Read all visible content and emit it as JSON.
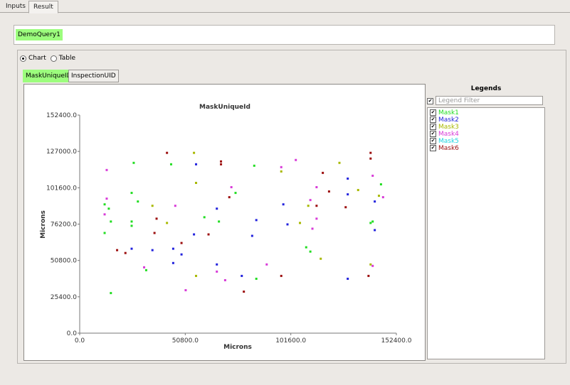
{
  "tabs": {
    "inputs": "Inputs",
    "result": "Result"
  },
  "query": {
    "chip": "DemoQuery1"
  },
  "view_mode": {
    "chart": "Chart",
    "table": "Table",
    "selected": "chart"
  },
  "subtabs": {
    "active": "MaskUniqueID",
    "other": "InspectionUID"
  },
  "legends": {
    "title": "Legends",
    "filter_placeholder": "Legend Filter",
    "items": [
      {
        "label": "Mask1",
        "color": "#22dd22"
      },
      {
        "label": "Mask2",
        "color": "#2222dd"
      },
      {
        "label": "Mask3",
        "color": "#a8b800"
      },
      {
        "label": "Mask4",
        "color": "#d83ad8"
      },
      {
        "label": "Mask5",
        "color": "#1dd5e0"
      },
      {
        "label": "Mask6",
        "color": "#9c0e0e"
      }
    ]
  },
  "chart_data": {
    "type": "scatter",
    "title": "MaskUniqueId",
    "xlabel": "Microns",
    "ylabel": "Microns",
    "xlim": [
      0,
      152400
    ],
    "ylim": [
      0,
      152400
    ],
    "xticks": [
      "0.0",
      "50800.0",
      "101600.0",
      "152400.0"
    ],
    "yticks": [
      "0.0",
      "25400.0",
      "50800.0",
      "76200.0",
      "101600.0",
      "127000.0",
      "152400.0"
    ],
    "grid": false,
    "series": [
      {
        "name": "Mask1",
        "color": "#22dd22",
        "points": [
          [
            12000,
            90000
          ],
          [
            12000,
            70000
          ],
          [
            14000,
            87000
          ],
          [
            15000,
            78000
          ],
          [
            15000,
            28000
          ],
          [
            25000,
            75000
          ],
          [
            25000,
            78000
          ],
          [
            25000,
            98000
          ],
          [
            26000,
            119000
          ],
          [
            28000,
            92000
          ],
          [
            32000,
            44000
          ],
          [
            44000,
            118000
          ],
          [
            60000,
            81000
          ],
          [
            67000,
            78000
          ],
          [
            75000,
            98000
          ],
          [
            84000,
            117000
          ],
          [
            85000,
            38000
          ],
          [
            109000,
            60000
          ],
          [
            111000,
            57000
          ],
          [
            140000,
            77000
          ],
          [
            141000,
            78000
          ],
          [
            145000,
            104000
          ]
        ]
      },
      {
        "name": "Mask2",
        "color": "#2222dd",
        "points": [
          [
            25000,
            59000
          ],
          [
            35000,
            58000
          ],
          [
            45000,
            59000
          ],
          [
            45000,
            49000
          ],
          [
            49000,
            55000
          ],
          [
            55000,
            69000
          ],
          [
            56000,
            118000
          ],
          [
            66000,
            87000
          ],
          [
            66000,
            48000
          ],
          [
            78000,
            40000
          ],
          [
            85000,
            79000
          ],
          [
            83000,
            68000
          ],
          [
            98000,
            90000
          ],
          [
            100000,
            76000
          ],
          [
            129000,
            108000
          ],
          [
            129000,
            97000
          ],
          [
            129000,
            38000
          ],
          [
            142000,
            72000
          ],
          [
            142000,
            92000
          ]
        ]
      },
      {
        "name": "Mask3",
        "color": "#a8b800",
        "points": [
          [
            35000,
            89000
          ],
          [
            42000,
            77000
          ],
          [
            55000,
            126000
          ],
          [
            56000,
            105000
          ],
          [
            56000,
            40000
          ],
          [
            97000,
            113000
          ],
          [
            106000,
            77000
          ],
          [
            110000,
            89000
          ],
          [
            116000,
            52000
          ],
          [
            125000,
            119000
          ],
          [
            134000,
            100000
          ],
          [
            140000,
            48000
          ],
          [
            144000,
            96000
          ]
        ]
      },
      {
        "name": "Mask4",
        "color": "#d83ad8",
        "points": [
          [
            12000,
            83000
          ],
          [
            13000,
            114000
          ],
          [
            13000,
            94000
          ],
          [
            31000,
            46000
          ],
          [
            46000,
            89000
          ],
          [
            51000,
            30000
          ],
          [
            66000,
            43000
          ],
          [
            70000,
            37000
          ],
          [
            73000,
            102000
          ],
          [
            90000,
            48000
          ],
          [
            97000,
            116000
          ],
          [
            104000,
            121000
          ],
          [
            111000,
            93000
          ],
          [
            112000,
            73000
          ],
          [
            114000,
            102000
          ],
          [
            114000,
            80000
          ],
          [
            141000,
            47000
          ],
          [
            141000,
            110000
          ],
          [
            146000,
            95000
          ]
        ]
      },
      {
        "name": "Mask6",
        "color": "#9c0e0e",
        "points": [
          [
            18000,
            58000
          ],
          [
            22000,
            56000
          ],
          [
            36000,
            70000
          ],
          [
            37000,
            80000
          ],
          [
            42000,
            126000
          ],
          [
            49000,
            63000
          ],
          [
            62000,
            69000
          ],
          [
            68000,
            120000
          ],
          [
            68000,
            118000
          ],
          [
            72000,
            95000
          ],
          [
            79000,
            29000
          ],
          [
            97000,
            40000
          ],
          [
            114000,
            89000
          ],
          [
            117000,
            112000
          ],
          [
            120000,
            99000
          ],
          [
            128000,
            88000
          ],
          [
            139000,
            40000
          ],
          [
            140000,
            126000
          ],
          [
            140000,
            122000
          ]
        ]
      }
    ]
  }
}
